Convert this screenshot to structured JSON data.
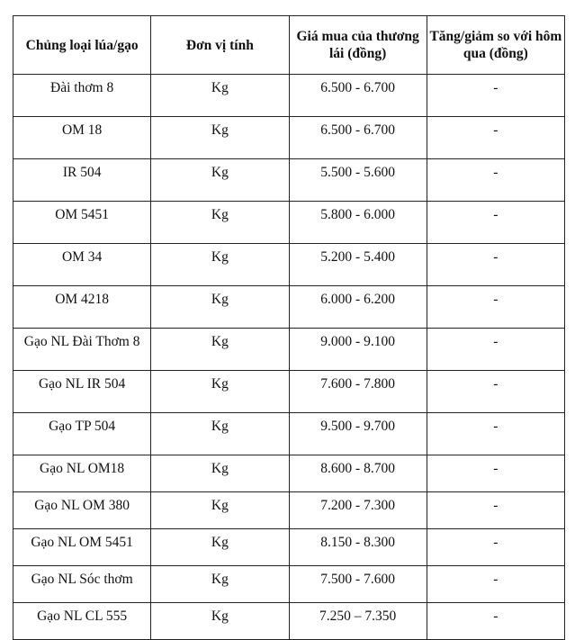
{
  "headers": [
    "Chủng loại lúa/gạo",
    "Đơn vị tính",
    "Giá mua của thương lái (đồng)",
    "Tăng/giảm so với hôm qua (đồng)"
  ],
  "rows": [
    [
      "Đài thơm 8",
      "Kg",
      "6.500 - 6.700",
      "-"
    ],
    [
      "OM 18",
      "Kg",
      "6.500 - 6.700",
      "-"
    ],
    [
      "IR 504",
      "Kg",
      "5.500 - 5.600",
      "-"
    ],
    [
      "OM 5451",
      "Kg",
      "5.800 - 6.000",
      "-"
    ],
    [
      "OM 34",
      "Kg",
      "5.200 - 5.400",
      "-"
    ],
    [
      "OM 4218",
      "Kg",
      "6.000 - 6.200",
      "-"
    ],
    [
      "Gạo NL Đài Thơm 8",
      "Kg",
      "9.000 - 9.100",
      "-"
    ],
    [
      "Gạo NL IR 504",
      "Kg",
      "7.600 - 7.800",
      "-"
    ],
    [
      "Gạo TP 504",
      "Kg",
      "9.500 - 9.700",
      "-"
    ],
    [
      "Gạo NL OM18",
      "Kg",
      "8.600 - 8.700",
      "-"
    ],
    [
      "Gạo NL OM 380",
      "Kg",
      "7.200 - 7.300",
      "-"
    ],
    [
      "Gạo NL OM 5451",
      "Kg",
      "8.150 - 8.300",
      "-"
    ],
    [
      "Gạo NL Sóc thơm",
      "Kg",
      "7.500 - 7.600",
      "-"
    ],
    [
      "Gạo NL CL 555",
      "Kg",
      "7.250 – 7.350",
      "-"
    ]
  ]
}
